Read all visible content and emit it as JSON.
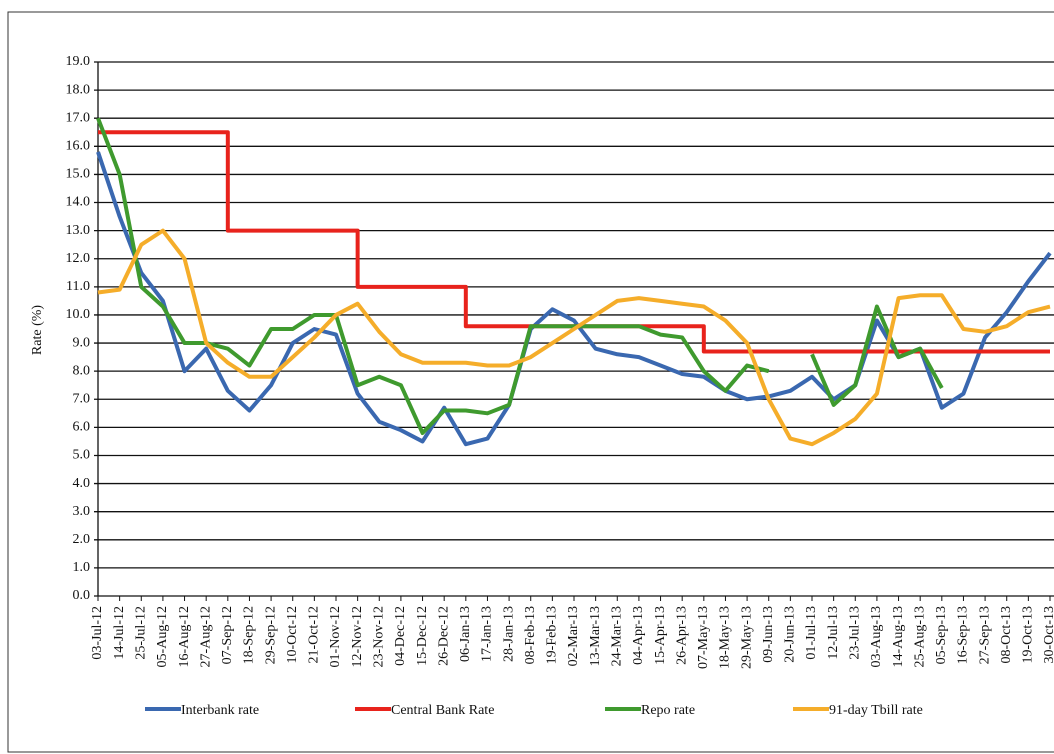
{
  "chart_data": {
    "type": "line",
    "y_label": "Rate (%)",
    "categories": [
      "03-Jul-12",
      "14-Jul-12",
      "25-Jul-12",
      "05-Aug-12",
      "16-Aug-12",
      "27-Aug-12",
      "07-Sep-12",
      "18-Sep-12",
      "29-Sep-12",
      "10-Oct-12",
      "21-Oct-12",
      "01-Nov-12",
      "12-Nov-12",
      "23-Nov-12",
      "04-Dec-12",
      "15-Dec-12",
      "26-Dec-12",
      "06-Jan-13",
      "17-Jan-13",
      "28-Jan-13",
      "08-Feb-13",
      "19-Feb-13",
      "02-Mar-13",
      "13-Mar-13",
      "24-Mar-13",
      "04-Apr-13",
      "15-Apr-13",
      "26-Apr-13",
      "07-May-13",
      "18-May-13",
      "29-May-13",
      "09-Jun-13",
      "20-Jun-13",
      "01-Jul-13",
      "12-Jul-13",
      "23-Jul-13",
      "03-Aug-13",
      "14-Aug-13",
      "25-Aug-13",
      "05-Sep-13",
      "16-Sep-13",
      "27-Sep-13",
      "08-Oct-13",
      "19-Oct-13",
      "30-Oct-13"
    ],
    "series": [
      {
        "name": "Interbank rate",
        "color": "#3a68b0",
        "values": [
          15.8,
          13.5,
          11.5,
          10.5,
          8.0,
          8.8,
          7.3,
          6.6,
          7.5,
          9.0,
          9.5,
          9.3,
          7.2,
          6.2,
          5.9,
          5.5,
          6.7,
          5.4,
          5.6,
          6.8,
          9.5,
          10.2,
          9.8,
          8.8,
          8.6,
          8.5,
          8.2,
          7.9,
          7.8,
          7.3,
          7.0,
          7.1,
          7.3,
          7.8,
          7.0,
          7.5,
          9.8,
          8.5,
          8.8,
          6.7,
          7.2,
          9.2,
          10.1,
          11.2,
          12.2
        ]
      },
      {
        "name": "Central Bank Rate",
        "color": "#e8231c",
        "step": true,
        "values": [
          16.5,
          16.5,
          16.5,
          16.5,
          16.5,
          16.5,
          13.0,
          13.0,
          13.0,
          13.0,
          13.0,
          13.0,
          11.0,
          11.0,
          11.0,
          11.0,
          11.0,
          9.6,
          9.6,
          9.6,
          9.6,
          9.6,
          9.6,
          9.6,
          9.6,
          9.6,
          9.6,
          9.6,
          8.7,
          8.7,
          8.7,
          8.7,
          8.7,
          8.7,
          8.7,
          8.7,
          8.7,
          8.7,
          8.7,
          8.7,
          8.7,
          8.7,
          8.7,
          8.7,
          8.7
        ]
      },
      {
        "name": "Repo rate",
        "color": "#3f9a2e",
        "values": [
          17.0,
          15.0,
          11.0,
          10.3,
          9.0,
          9.0,
          8.8,
          8.2,
          9.5,
          9.5,
          10.0,
          10.0,
          7.5,
          7.8,
          7.5,
          5.8,
          6.6,
          6.6,
          6.5,
          6.8,
          9.6,
          9.6,
          9.6,
          9.6,
          9.6,
          9.6,
          9.3,
          9.2,
          8.0,
          7.3,
          8.2,
          8.0,
          null,
          8.6,
          6.8,
          7.5,
          10.3,
          8.5,
          8.8,
          7.4,
          null,
          null,
          null,
          null,
          null
        ]
      },
      {
        "name": "91-day Tbill rate",
        "color": "#f5ad2a",
        "values": [
          10.8,
          10.9,
          12.5,
          13.0,
          12.0,
          9.0,
          8.3,
          7.8,
          7.8,
          8.5,
          9.2,
          10.0,
          10.4,
          9.4,
          8.6,
          8.3,
          8.3,
          8.3,
          8.2,
          8.2,
          8.5,
          9.0,
          9.5,
          10.0,
          10.5,
          10.6,
          10.5,
          10.4,
          10.3,
          9.8,
          9.0,
          7.0,
          5.6,
          5.4,
          5.8,
          6.3,
          7.2,
          10.6,
          10.7,
          10.7,
          9.5,
          9.4,
          9.6,
          10.1,
          10.3
        ]
      }
    ],
    "ylim": [
      0,
      19
    ],
    "yticks": [
      {
        "value": 0,
        "label": "0.0"
      },
      {
        "value": 1,
        "label": "1.0"
      },
      {
        "value": 2,
        "label": "2.0"
      },
      {
        "value": 3,
        "label": "3.0"
      },
      {
        "value": 4,
        "label": "4.0"
      },
      {
        "value": 5,
        "label": "5.0"
      },
      {
        "value": 6,
        "label": "6.0"
      },
      {
        "value": 7,
        "label": "7.0"
      },
      {
        "value": 8,
        "label": "8.0"
      },
      {
        "value": 9,
        "label": "9.0"
      },
      {
        "value": 10,
        "label": "10.0"
      },
      {
        "value": 11,
        "label": "11.0"
      },
      {
        "value": 12,
        "label": "12.0"
      },
      {
        "value": 13,
        "label": "13.0"
      },
      {
        "value": 14,
        "label": "14.0"
      },
      {
        "value": 15,
        "label": "15.0"
      },
      {
        "value": 16,
        "label": "16.0"
      },
      {
        "value": 17,
        "label": "17.0"
      },
      {
        "value": 18,
        "label": "18.0"
      },
      {
        "value": 19,
        "label": "19.0"
      }
    ],
    "grid": true
  }
}
